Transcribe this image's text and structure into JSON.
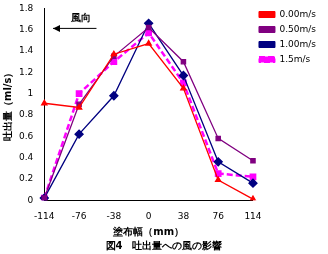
{
  "chart_data": {
    "type": "line",
    "title": "図4　吐出量への風の影響",
    "x_label": "塗布幅（mm）",
    "y_label": "吐出量（ml/s）",
    "annotations": [
      "風向"
    ],
    "categories": [
      "-114",
      "-76",
      "-38",
      "0",
      "38",
      "76",
      "114"
    ],
    "series": [
      {
        "name": "0.00m/s",
        "color": "#ff0000",
        "marker": "triangle",
        "line_style": "solid",
        "values": [
          0.91,
          0.87,
          1.37,
          1.47,
          1.05,
          0.19,
          0.01
        ]
      },
      {
        "name": "0.50m/s",
        "color": "#800080",
        "marker": "square",
        "line_style": "solid",
        "values": [
          0.02,
          0.9,
          1.35,
          1.62,
          1.3,
          0.58,
          0.37
        ]
      },
      {
        "name": "1.00m/s",
        "color": "#000080",
        "marker": "diamond",
        "line_style": "solid",
        "values": [
          0.02,
          0.62,
          0.98,
          1.66,
          1.17,
          0.36,
          0.16
        ]
      },
      {
        "name": "1.5m/s",
        "color": "#ff00ff",
        "marker": "square",
        "line_style": "dashed",
        "values": [
          0.02,
          1.0,
          1.3,
          1.57,
          1.1,
          0.25,
          0.22
        ]
      }
    ],
    "ylim": [
      0,
      1.8
    ],
    "yticks": [
      0,
      0.2,
      0.4,
      0.6,
      0.8,
      1,
      1.2,
      1.4,
      1.6,
      1.8
    ],
    "grid": false,
    "legend": "upper right"
  }
}
